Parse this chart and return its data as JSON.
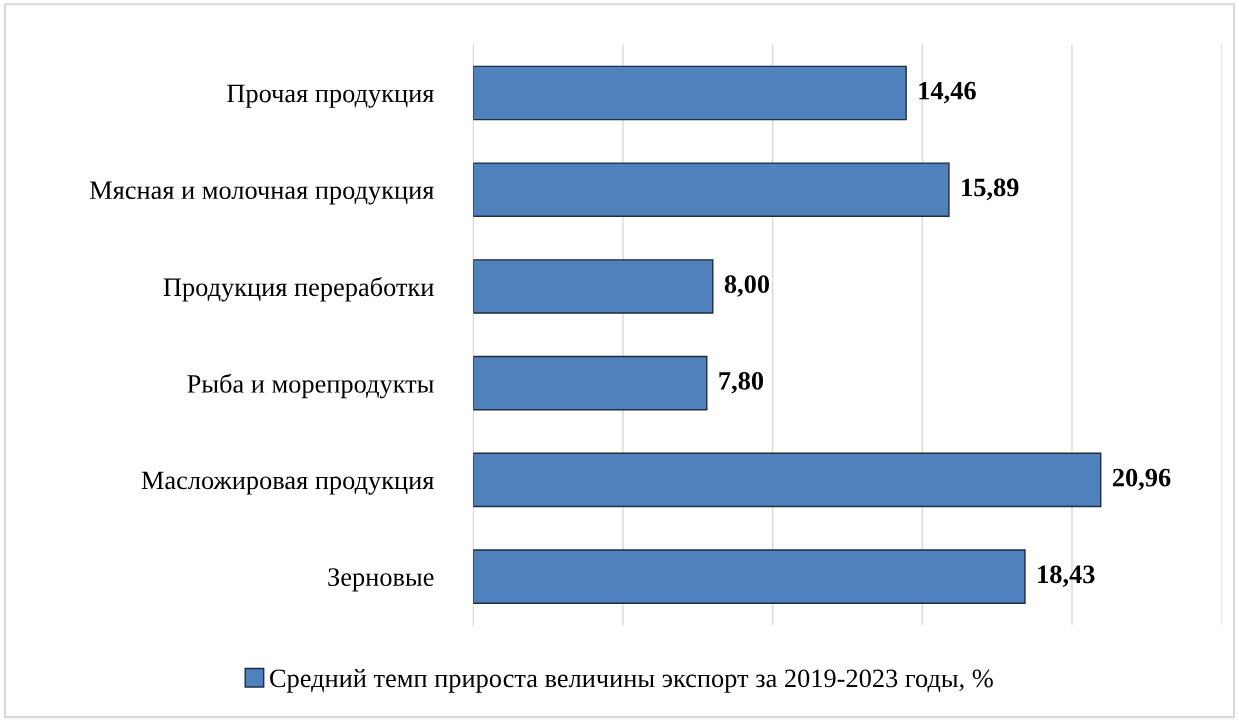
{
  "chart_data": {
    "type": "bar",
    "orientation": "horizontal",
    "categories": [
      "Прочая продукция",
      "Мясная и молочная продукция",
      "Продукция переработки",
      "Рыба и морепродукты",
      "Масложировая продукция",
      "Зерновые"
    ],
    "series": [
      {
        "name": "Средний темп прироста величины экспорт за 2019-2023 годы, %",
        "color": "#4f81bd",
        "values": [
          14.46,
          15.89,
          8.0,
          7.8,
          20.96,
          18.43
        ],
        "value_labels": [
          "14,46",
          "15,89",
          "8,00",
          "7,80",
          "20,96",
          "18,43"
        ]
      }
    ],
    "xlim": [
      0,
      25
    ],
    "xticks": [
      {
        "value": 0,
        "label": null
      },
      {
        "value": 5,
        "label": null
      },
      {
        "value": 10,
        "label": null
      },
      {
        "value": 15,
        "label": null
      },
      {
        "value": 20,
        "label": null
      },
      {
        "value": 25,
        "label": null
      }
    ],
    "tick_labels": "y",
    "grid": "x",
    "legend": "bottom"
  }
}
